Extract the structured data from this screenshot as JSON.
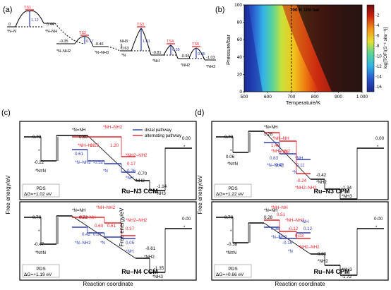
{
  "colors": {
    "red": "#e8202a",
    "blue": "#2f3eb3",
    "black": "#000000"
  },
  "chart_data": [
    {
      "panel": "(a)",
      "type": "line",
      "levels": [
        {
          "label": "*N–N",
          "value": "0"
        },
        {
          "label": "TS1",
          "value": "",
          "barrier": "1.12"
        },
        {
          "label": "*N–NH",
          "value": "0.44"
        },
        {
          "label": "*N–NH2",
          "value": "-0.35"
        },
        {
          "label": "TS2",
          "value": "",
          "barrier": "0.17"
        },
        {
          "label": "*N–NH3",
          "value": "-0.46"
        },
        {
          "label": "*N",
          "value": "-0.63",
          "extra": "NH3"
        },
        {
          "label": "TS3",
          "value": "",
          "barrier": "1.01"
        },
        {
          "label": "*NH",
          "value": "-0.81"
        },
        {
          "label": "TS4",
          "value": "",
          "barrier": "0.35"
        },
        {
          "label": "*NH2",
          "value": "-0.96"
        },
        {
          "label": "TS5",
          "value": "",
          "barrier": "0.35"
        },
        {
          "label": "*NH3",
          "value": "-1.03"
        }
      ]
    },
    {
      "panel": "(b)",
      "type": "heatmap",
      "xlabel": "Temperature/K",
      "ylabel": "Pressure/bar",
      "x_ticks": [
        "500",
        "600",
        "700",
        "800",
        "900",
        "1 000"
      ],
      "y_ticks": [
        "0",
        "20",
        "40",
        "60",
        "80",
        "100"
      ],
      "xlim": [
        500,
        1000
      ],
      "ylim": [
        0,
        100
      ],
      "annotation": "700 K 100 bar",
      "colorbar_label": "log[TOF/(S⁻¹ site⁻¹)]",
      "colorbar_ticks": [
        "-2",
        "-4",
        "-6",
        "-8",
        "-10",
        "-12",
        "-14",
        "-16"
      ],
      "colorbar_range": [
        -17,
        0
      ]
    },
    {
      "panel": "(c)",
      "type": "line",
      "ylabel": "Free energy/eV",
      "xlabel": "Reaction coordinate",
      "legend": [
        "distal pathway",
        "alternating pathway"
      ],
      "subplots": [
        {
          "title": "Ru–N3 CCM",
          "pds": "PDS",
          "dg": "ΔG=+1.02 eV",
          "labels": [
            {
              "text": "0.70",
              "c": "black"
            },
            {
              "text": "*",
              "c": "black"
            },
            {
              "text": "-0.22",
              "c": "black"
            },
            {
              "text": "*N≡N",
              "c": "black"
            },
            {
              "text": "*N=NH",
              "c": "black"
            },
            {
              "text": "0.80",
              "c": "black"
            },
            {
              "text": "*NH–NH2",
              "c": "red"
            },
            {
              "text": "1.13",
              "c": "red"
            },
            {
              "text": "1.20",
              "c": "red"
            },
            {
              "text": "*NH–NH",
              "c": "red"
            },
            {
              "text": "0.61",
              "c": "blue"
            },
            {
              "text": "*N–NH2",
              "c": "blue"
            },
            {
              "text": "-0.52",
              "c": "blue"
            },
            {
              "text": "*N",
              "c": "blue"
            },
            {
              "text": "*NH2–NH2",
              "c": "red"
            },
            {
              "text": "0.17",
              "c": "red"
            },
            {
              "text": "-0.26",
              "c": "blue"
            },
            {
              "text": "*NH",
              "c": "blue"
            },
            {
              "text": "-0.70",
              "c": "black"
            },
            {
              "text": "*NH2",
              "c": "black"
            },
            {
              "text": "-1.14",
              "c": "black"
            },
            {
              "text": "*NH3",
              "c": "black"
            },
            {
              "text": "0.00",
              "c": "black"
            },
            {
              "text": "*",
              "c": "black"
            }
          ]
        },
        {
          "title": "Ru–N4 CCM",
          "pds": "PDS",
          "dg": "ΔG=+1.19 eV",
          "labels": [
            {
              "text": "0.70",
              "c": "black"
            },
            {
              "text": "*",
              "c": "black"
            },
            {
              "text": "-0.47",
              "c": "black"
            },
            {
              "text": "*N≡N",
              "c": "black"
            },
            {
              "text": "*N=NH",
              "c": "black"
            },
            {
              "text": "0.72",
              "c": "black"
            },
            {
              "text": "*NH–NH",
              "c": "red"
            },
            {
              "text": "*NH–NH2",
              "c": "red"
            },
            {
              "text": "0.60",
              "c": "red"
            },
            {
              "text": "0.61",
              "c": "red"
            },
            {
              "text": "0.42",
              "c": "blue"
            },
            {
              "text": "*N–NH2",
              "c": "blue"
            },
            {
              "text": "0.07",
              "c": "blue"
            },
            {
              "text": "*N",
              "c": "blue"
            },
            {
              "text": "*NH2–NH2",
              "c": "red"
            },
            {
              "text": "0.37",
              "c": "red"
            },
            {
              "text": "0.05",
              "c": "blue"
            },
            {
              "text": "*NH",
              "c": "blue"
            },
            {
              "text": "-0.61",
              "c": "black"
            },
            {
              "text": "*NH2",
              "c": "black"
            },
            {
              "text": "-1.35",
              "c": "black"
            },
            {
              "text": "*NH3",
              "c": "black"
            },
            {
              "text": "0.00",
              "c": "black"
            },
            {
              "text": "*",
              "c": "black"
            }
          ]
        }
      ]
    },
    {
      "panel": "(d)",
      "type": "line",
      "ylabel": "Free energy/eV",
      "xlabel": "Reaction coordinate",
      "subplots": [
        {
          "title": "Ru–N3 CPM",
          "pds": "PDS",
          "dg": "ΔG=+1.22 eV",
          "labels": [
            {
              "text": "0.70",
              "c": "black"
            },
            {
              "text": "*",
              "c": "black"
            },
            {
              "text": "0.06",
              "c": "black"
            },
            {
              "text": "*N≡N",
              "c": "black"
            },
            {
              "text": "*N=NH",
              "c": "black"
            },
            {
              "text": "1.28",
              "c": "black"
            },
            {
              "text": "*NH–NH",
              "c": "red"
            },
            {
              "text": "1.48",
              "c": "red"
            },
            {
              "text": "*NH–NH2",
              "c": "red"
            },
            {
              "text": "1.06",
              "c": "red"
            },
            {
              "text": "0.83",
              "c": "blue"
            },
            {
              "text": "*N–NH2",
              "c": "blue"
            },
            {
              "text": "0.48",
              "c": "blue"
            },
            {
              "text": "*NH",
              "c": "blue"
            },
            {
              "text": "*N",
              "c": "blue"
            },
            {
              "text": "0.11",
              "c": "blue"
            },
            {
              "text": "-0.24",
              "c": "red"
            },
            {
              "text": "*NH2–NH2",
              "c": "red"
            },
            {
              "text": "-0.42",
              "c": "black"
            },
            {
              "text": "*NH2",
              "c": "black"
            },
            {
              "text": "-1.34",
              "c": "black"
            },
            {
              "text": "*NH3",
              "c": "black"
            },
            {
              "text": "0.00",
              "c": "black"
            },
            {
              "text": "*",
              "c": "black"
            }
          ]
        },
        {
          "title": "Ru–N4 CPM",
          "pds": "PDS",
          "dg": "ΔG=+0.66 eV",
          "labels": [
            {
              "text": "0.70",
              "c": "black"
            },
            {
              "text": "*",
              "c": "black"
            },
            {
              "text": "-0.38",
              "c": "black"
            },
            {
              "text": "*N≡N",
              "c": "black"
            },
            {
              "text": "*N=NH",
              "c": "black"
            },
            {
              "text": "0.28",
              "c": "black"
            },
            {
              "text": "*NH–NH",
              "c": "red"
            },
            {
              "text": "0.51",
              "c": "red"
            },
            {
              "text": "*NH–NH2",
              "c": "red"
            },
            {
              "text": "-0.12",
              "c": "red"
            },
            {
              "text": "0.38",
              "c": "blue"
            },
            {
              "text": "*N–NH2",
              "c": "blue"
            },
            {
              "text": "*NH",
              "c": "blue"
            },
            {
              "text": "0.12",
              "c": "blue"
            },
            {
              "text": "-0.15",
              "c": "blue"
            },
            {
              "text": "*N",
              "c": "blue"
            },
            {
              "text": "0.03",
              "c": "red"
            },
            {
              "text": "*NH2–NH2",
              "c": "red"
            },
            {
              "text": "-0.89",
              "c": "black"
            },
            {
              "text": "*NH2",
              "c": "black"
            },
            {
              "text": "*NH3",
              "c": "black"
            },
            {
              "text": "-1.72",
              "c": "black"
            },
            {
              "text": "0.00",
              "c": "black"
            },
            {
              "text": "*",
              "c": "black"
            }
          ]
        }
      ]
    }
  ]
}
